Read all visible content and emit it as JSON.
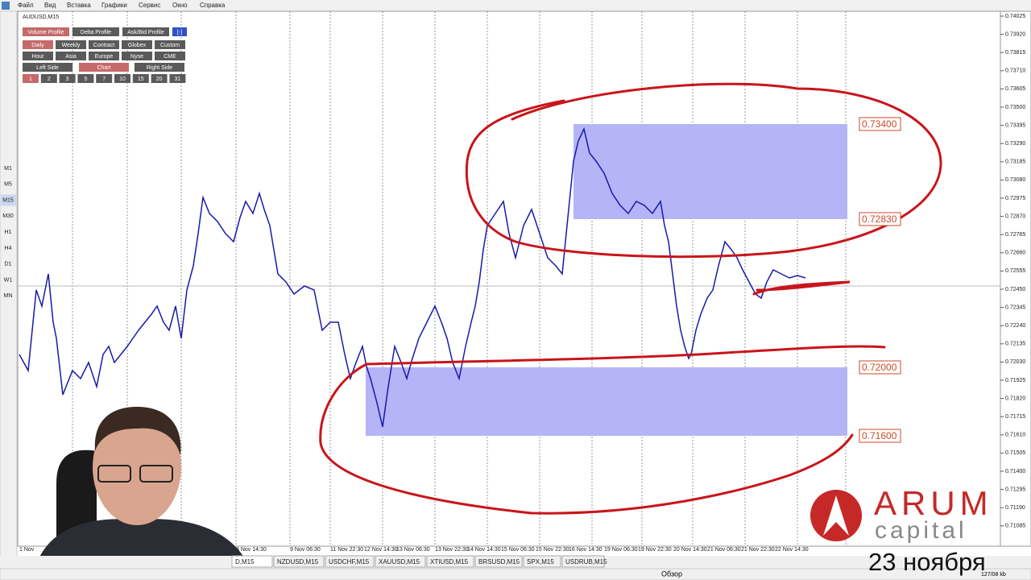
{
  "menu": [
    "Файл",
    "Вид",
    "Вставка",
    "Графики",
    "Сервис",
    "Окно",
    "Справка"
  ],
  "timeframes": [
    "M1",
    "M5",
    "M15",
    "M30",
    "H1",
    "H4",
    "D1",
    "W1",
    "MN"
  ],
  "chart_window": {
    "title": "AUDUSD,M15",
    "panel": {
      "row1": [
        "Volume Profile",
        "Delta Profile",
        "Ask/Bid Profile",
        "[-]"
      ],
      "row2": [
        "Daily",
        "Weekly",
        "Contract",
        "Globex",
        "Custom"
      ],
      "row3": [
        "Hour",
        "Asia",
        "Europe",
        "Nyse",
        "CME"
      ],
      "row4": [
        "Left Side",
        "Chart",
        "Right Side"
      ],
      "row5": [
        "1",
        "2",
        "3",
        "5",
        "7",
        "10",
        "15",
        "20",
        "31"
      ]
    },
    "price_axis": [
      "0.74025",
      "0.73920",
      "0.73815",
      "0.73710",
      "0.73605",
      "0.73500",
      "0.73395",
      "0.73290",
      "0.73185",
      "0.73080",
      "0.72975",
      "0.72870",
      "0.72765",
      "0.72660",
      "0.72555",
      "0.72450",
      "0.72345",
      "0.72240",
      "0.72135",
      "0.72030",
      "0.71925",
      "0.71820",
      "0.71715",
      "0.71610",
      "0.71505",
      "0.71400",
      "0.71295",
      "0.71190",
      "0.71085"
    ],
    "time_axis": [
      "1 Nov",
      "8 Nov 14:30",
      "9 Nov 06:30",
      "11 Nov 22:30",
      "12 Nov 14:30",
      "13 Nov 06:30",
      "13 Nov 22:30",
      "14 Nov 14:30",
      "15 Nov 06:30",
      "15 Nov 22:30",
      "16 Nov 14:30",
      "19 Nov 06:30",
      "19 Nov 22:30",
      "20 Nov 14:30",
      "21 Nov 06:30",
      "21 Nov 22:30",
      "22 Nov 14:30"
    ],
    "zone_labels": [
      "0.73400",
      "0.72830",
      "0.72000",
      "0.71600"
    ]
  },
  "tabs": [
    "D,M15",
    "NZDUSD,M15",
    "USDCHF,M15",
    "XAUUSD,M15",
    "XTIUSD,M15",
    "BRSUSD,M15",
    "SPX,M15",
    "USDRUB,M15"
  ],
  "status": {
    "overview": "Обзор",
    "traffic": "127/08 kb"
  },
  "logo": {
    "name": "ARUM",
    "sub": "capital"
  },
  "caption": "23 ноября"
}
